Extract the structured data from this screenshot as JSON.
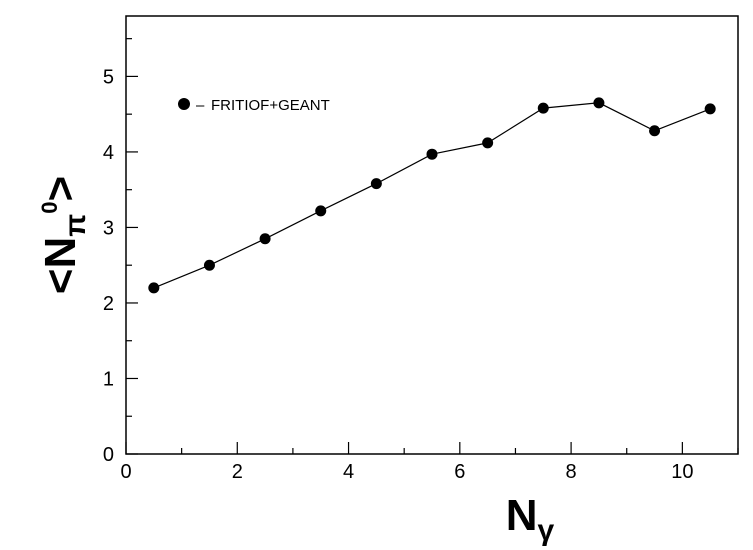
{
  "chart_data": {
    "type": "line",
    "title": "",
    "x": [
      0.5,
      1.5,
      2.5,
      3.5,
      4.5,
      5.5,
      6.5,
      7.5,
      8.5,
      9.5,
      10.5
    ],
    "series": [
      {
        "name": "FRITIOF+GEANT",
        "values": [
          2.2,
          2.5,
          2.85,
          3.22,
          3.58,
          3.97,
          4.12,
          4.58,
          4.65,
          4.28,
          4.57
        ]
      }
    ],
    "xlim": [
      0,
      11
    ],
    "ylim": [
      0,
      5.8
    ],
    "x_ticks": [
      "0",
      "2",
      "4",
      "6",
      "8",
      "10"
    ],
    "y_ticks": [
      "0",
      "1",
      "2",
      "3",
      "4",
      "5"
    ],
    "xlabel": {
      "main": "N",
      "sub": "γ"
    },
    "ylabel": {
      "open": "<",
      "main": "N",
      "sub": "π",
      "sup": "0",
      "close": ">"
    },
    "legend": {
      "marker": "●",
      "dash": "–",
      "label": "FRITIOF+GEANT",
      "position": "top-left"
    },
    "grid": false,
    "colors": {
      "line": "#000000",
      "marker": "#000000",
      "axis": "#000000"
    }
  }
}
